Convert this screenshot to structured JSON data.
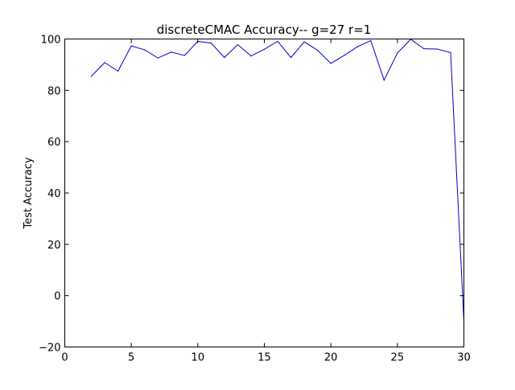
{
  "chart_data": {
    "type": "line",
    "title": "discreteCMAC Accuracy-- g=27 r=1",
    "xlabel": "",
    "ylabel": "Test Accuracy",
    "xlim": [
      0,
      30
    ],
    "ylim": [
      -20,
      100
    ],
    "xticks": [
      0,
      5,
      10,
      15,
      20,
      25,
      30
    ],
    "yticks": [
      -20,
      0,
      20,
      40,
      60,
      80,
      100
    ],
    "grid": false,
    "series": [
      {
        "name": "",
        "color": "#0000cc",
        "x": [
          2,
          3,
          4,
          5,
          6,
          7,
          8,
          9,
          10,
          11,
          12,
          13,
          14,
          15,
          16,
          17,
          18,
          19,
          20,
          21,
          22,
          23,
          24,
          25,
          26,
          27,
          28,
          29,
          30
        ],
        "y": [
          85.5,
          90.8,
          87.5,
          97.3,
          95.8,
          92.6,
          94.9,
          93.6,
          99.1,
          98.4,
          92.8,
          97.8,
          93.4,
          96.0,
          99.1,
          92.8,
          98.9,
          95.6,
          90.5,
          93.6,
          97.0,
          99.4,
          84.0,
          94.5,
          99.9,
          96.2,
          96.1,
          94.7,
          -10.0
        ]
      }
    ]
  }
}
